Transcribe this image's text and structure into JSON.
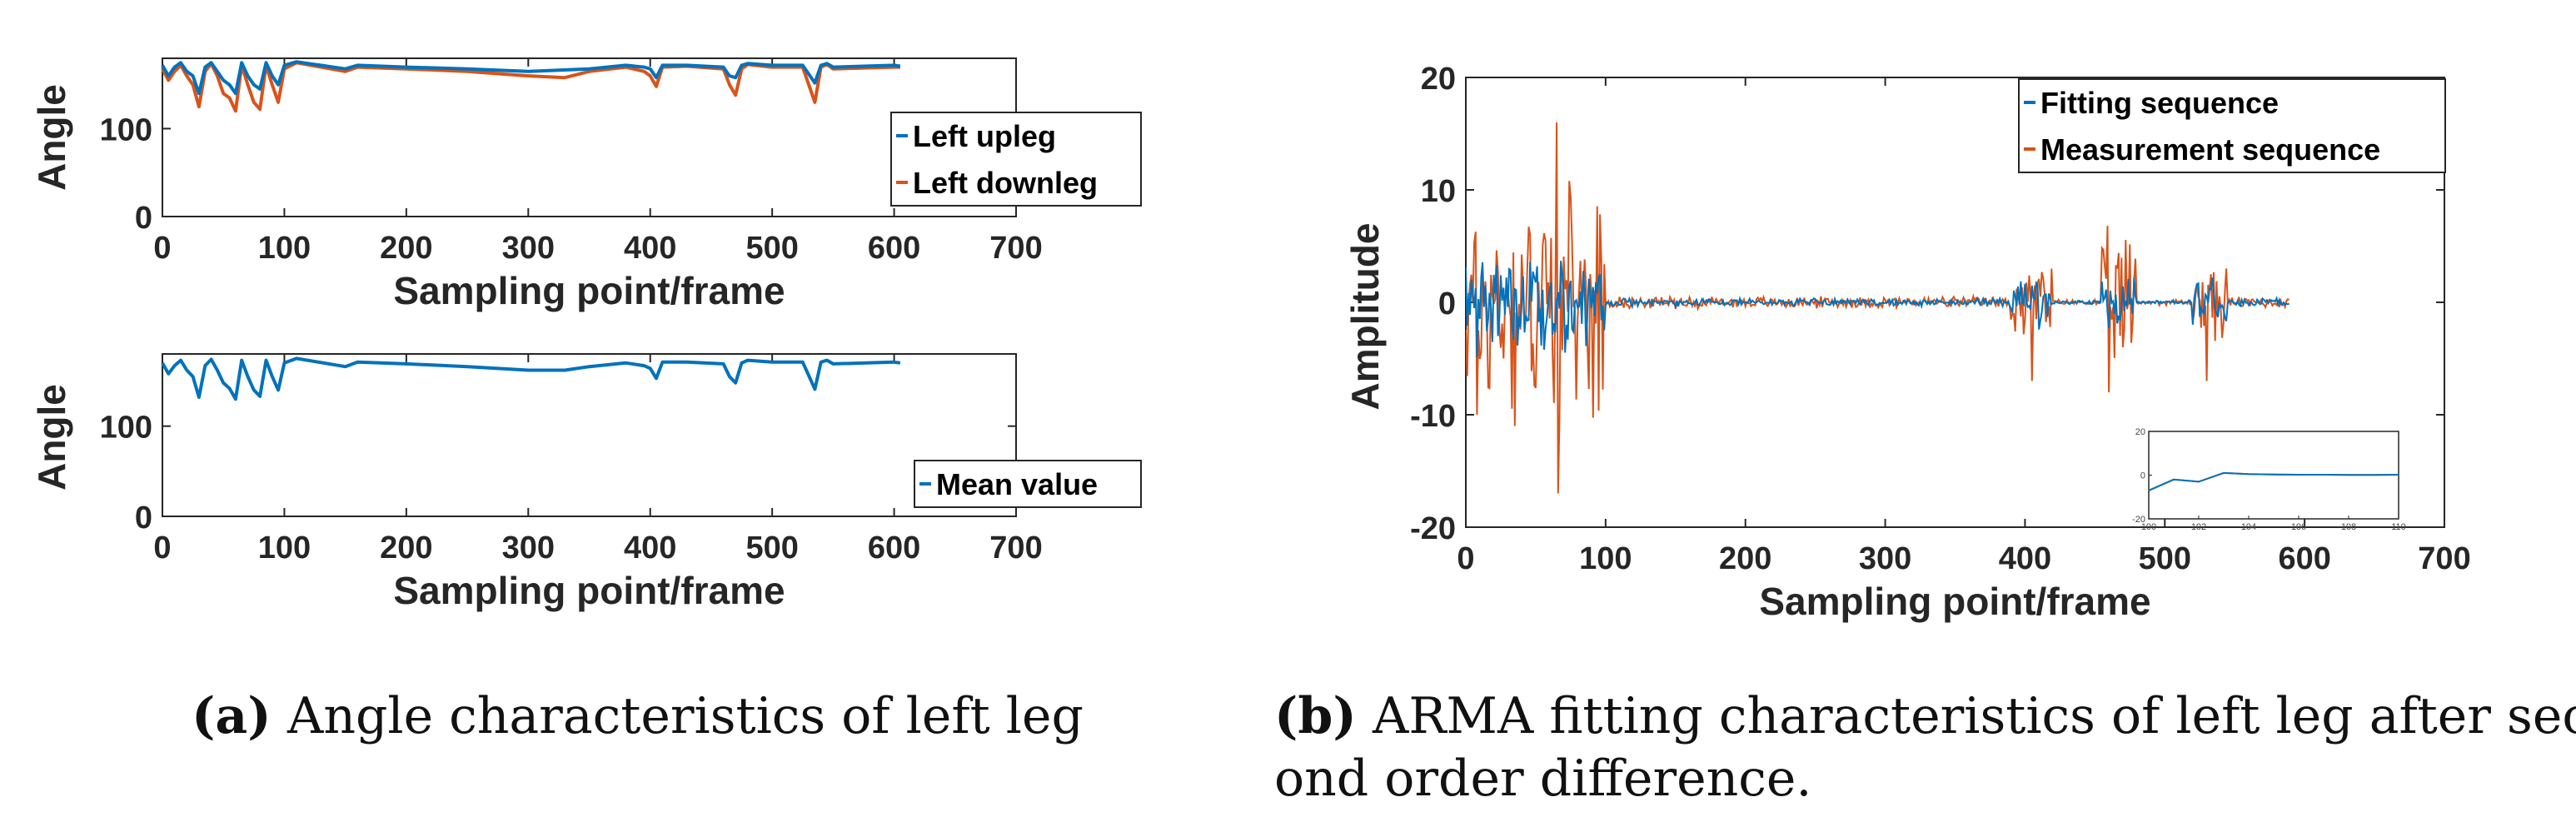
{
  "colors": {
    "blue": "#0072BD",
    "orange": "#D95319",
    "axis": "#262626"
  },
  "chart_data": [
    {
      "id": "a-top",
      "type": "line",
      "xlabel": "Sampling point/frame",
      "ylabel": "Angle",
      "xlim": [
        0,
        700
      ],
      "ylim": [
        0,
        180
      ],
      "xticks": [
        "0",
        "100",
        "200",
        "300",
        "400",
        "500",
        "600",
        "700"
      ],
      "yticks": [
        "0",
        "100"
      ],
      "legend": [
        "Left upleg",
        "Left downleg"
      ],
      "series": [
        {
          "name": "Left upleg",
          "x": [
            0,
            5,
            10,
            15,
            20,
            25,
            30,
            35,
            40,
            45,
            50,
            55,
            60,
            65,
            70,
            75,
            80,
            85,
            90,
            95,
            100,
            110,
            150,
            160,
            200,
            250,
            300,
            350,
            380,
            395,
            400,
            405,
            410,
            430,
            460,
            465,
            470,
            475,
            480,
            500,
            525,
            530,
            535,
            540,
            545,
            550,
            600,
            605
          ],
          "y": [
            172,
            160,
            170,
            175,
            165,
            160,
            140,
            170,
            175,
            165,
            155,
            150,
            140,
            175,
            160,
            150,
            145,
            175,
            160,
            150,
            172,
            176,
            168,
            172,
            170,
            168,
            165,
            168,
            172,
            170,
            168,
            158,
            172,
            172,
            170,
            160,
            158,
            172,
            174,
            172,
            172,
            162,
            152,
            172,
            174,
            170,
            172,
            171
          ]
        },
        {
          "name": "Left downleg",
          "x": [
            0,
            5,
            10,
            15,
            20,
            25,
            30,
            35,
            40,
            45,
            50,
            55,
            60,
            65,
            70,
            75,
            80,
            85,
            90,
            95,
            100,
            110,
            150,
            160,
            200,
            250,
            300,
            330,
            350,
            380,
            395,
            400,
            405,
            410,
            430,
            460,
            465,
            470,
            475,
            480,
            500,
            525,
            530,
            535,
            540,
            545,
            550,
            600,
            605
          ],
          "y": [
            168,
            155,
            165,
            172,
            160,
            150,
            125,
            165,
            174,
            160,
            140,
            135,
            120,
            172,
            150,
            130,
            122,
            172,
            150,
            130,
            168,
            175,
            165,
            170,
            168,
            165,
            160,
            158,
            165,
            170,
            165,
            160,
            148,
            170,
            171,
            168,
            150,
            138,
            168,
            173,
            170,
            170,
            150,
            130,
            170,
            173,
            168,
            170,
            170
          ]
        }
      ]
    },
    {
      "id": "a-bottom",
      "type": "line",
      "xlabel": "Sampling point/frame",
      "ylabel": "Angle",
      "xlim": [
        0,
        700
      ],
      "ylim": [
        0,
        180
      ],
      "xticks": [
        "0",
        "100",
        "200",
        "300",
        "400",
        "500",
        "600",
        "700"
      ],
      "yticks": [
        "0",
        "100"
      ],
      "legend": [
        "Mean value"
      ],
      "series": [
        {
          "name": "Mean value",
          "x": [
            0,
            5,
            10,
            15,
            20,
            25,
            30,
            35,
            40,
            45,
            50,
            55,
            60,
            65,
            70,
            75,
            80,
            85,
            90,
            95,
            100,
            110,
            150,
            160,
            200,
            250,
            300,
            330,
            350,
            380,
            395,
            400,
            405,
            410,
            430,
            460,
            465,
            470,
            475,
            480,
            500,
            525,
            530,
            535,
            540,
            545,
            550,
            600,
            605
          ],
          "y": [
            170,
            158,
            167,
            173,
            162,
            155,
            132,
            167,
            174,
            162,
            148,
            142,
            130,
            173,
            155,
            140,
            133,
            173,
            155,
            140,
            170,
            175,
            166,
            171,
            169,
            166,
            162,
            162,
            166,
            170,
            167,
            164,
            153,
            171,
            171,
            169,
            155,
            148,
            170,
            173,
            171,
            171,
            156,
            141,
            171,
            173,
            169,
            171,
            170
          ]
        }
      ]
    },
    {
      "id": "b-main",
      "type": "line",
      "xlabel": "Sampling point/frame",
      "ylabel": "Amplitude",
      "xlim": [
        0,
        700
      ],
      "ylim": [
        -20,
        20
      ],
      "xticks": [
        "0",
        "100",
        "200",
        "300",
        "400",
        "500",
        "600",
        "700"
      ],
      "yticks": [
        "-20",
        "-10",
        "0",
        "10",
        "20"
      ],
      "legend": [
        "Fitting sequence",
        "Measurement sequence"
      ],
      "series": [
        {
          "name": "Fitting sequence",
          "bursts": [
            [
              0,
              100,
              5
            ],
            [
              100,
              390,
              0.4
            ],
            [
              390,
              420,
              2.5
            ],
            [
              420,
              455,
              0.2
            ],
            [
              455,
              480,
              3.5
            ],
            [
              480,
              520,
              0.2
            ],
            [
              520,
              545,
              2.5
            ],
            [
              545,
              590,
              0.4
            ]
          ]
        },
        {
          "name": "Measurement sequence",
          "bursts": [
            [
              0,
              100,
              11
            ],
            [
              100,
              390,
              0.6
            ],
            [
              390,
              420,
              4
            ],
            [
              420,
              455,
              0.3
            ],
            [
              455,
              480,
              7
            ],
            [
              480,
              520,
              0.3
            ],
            [
              520,
              545,
              4
            ],
            [
              545,
              590,
              0.6
            ]
          ],
          "spikes": [
            [
              65,
              16
            ],
            [
              66,
              -17
            ],
            [
              35,
              -11
            ],
            [
              8,
              -10
            ],
            [
              470,
              12
            ],
            [
              470,
              -4
            ],
            [
              460,
              -8
            ],
            [
              405,
              -7
            ],
            [
              530,
              -7
            ]
          ]
        }
      ],
      "inset": {
        "xlim": [
          100,
          110
        ],
        "ylim": [
          -20,
          20
        ],
        "xticks": [
          "100",
          "102",
          "104",
          "106",
          "108",
          "110"
        ],
        "yticks": [
          "-20",
          "0",
          "20"
        ],
        "series": [
          {
            "name": "Fitting sequence",
            "x": [
              100,
              101,
              102,
              103,
              104,
              105,
              106,
              107,
              108,
              109,
              110
            ],
            "y": [
              -7,
              -2,
              -3,
              1,
              0.5,
              0.3,
              0.2,
              0.2,
              0.1,
              0.1,
              0.2
            ]
          },
          {
            "name": "Measurement sequence",
            "x": [
              100,
              101,
              102,
              103,
              104,
              105,
              106,
              107,
              108,
              109,
              110
            ],
            "y": [
              -7,
              -2,
              -3,
              1,
              0.5,
              0.3,
              0.2,
              0.2,
              0.1,
              0.1,
              0.2
            ]
          }
        ]
      }
    }
  ],
  "captions": {
    "a_label": "(a)",
    "a_text": "Angle characteristics of left leg",
    "b_label": "(b)",
    "b_text_line1": "ARMA fitting characteristics of left leg after sec-",
    "b_text_line2": "ond order difference."
  }
}
